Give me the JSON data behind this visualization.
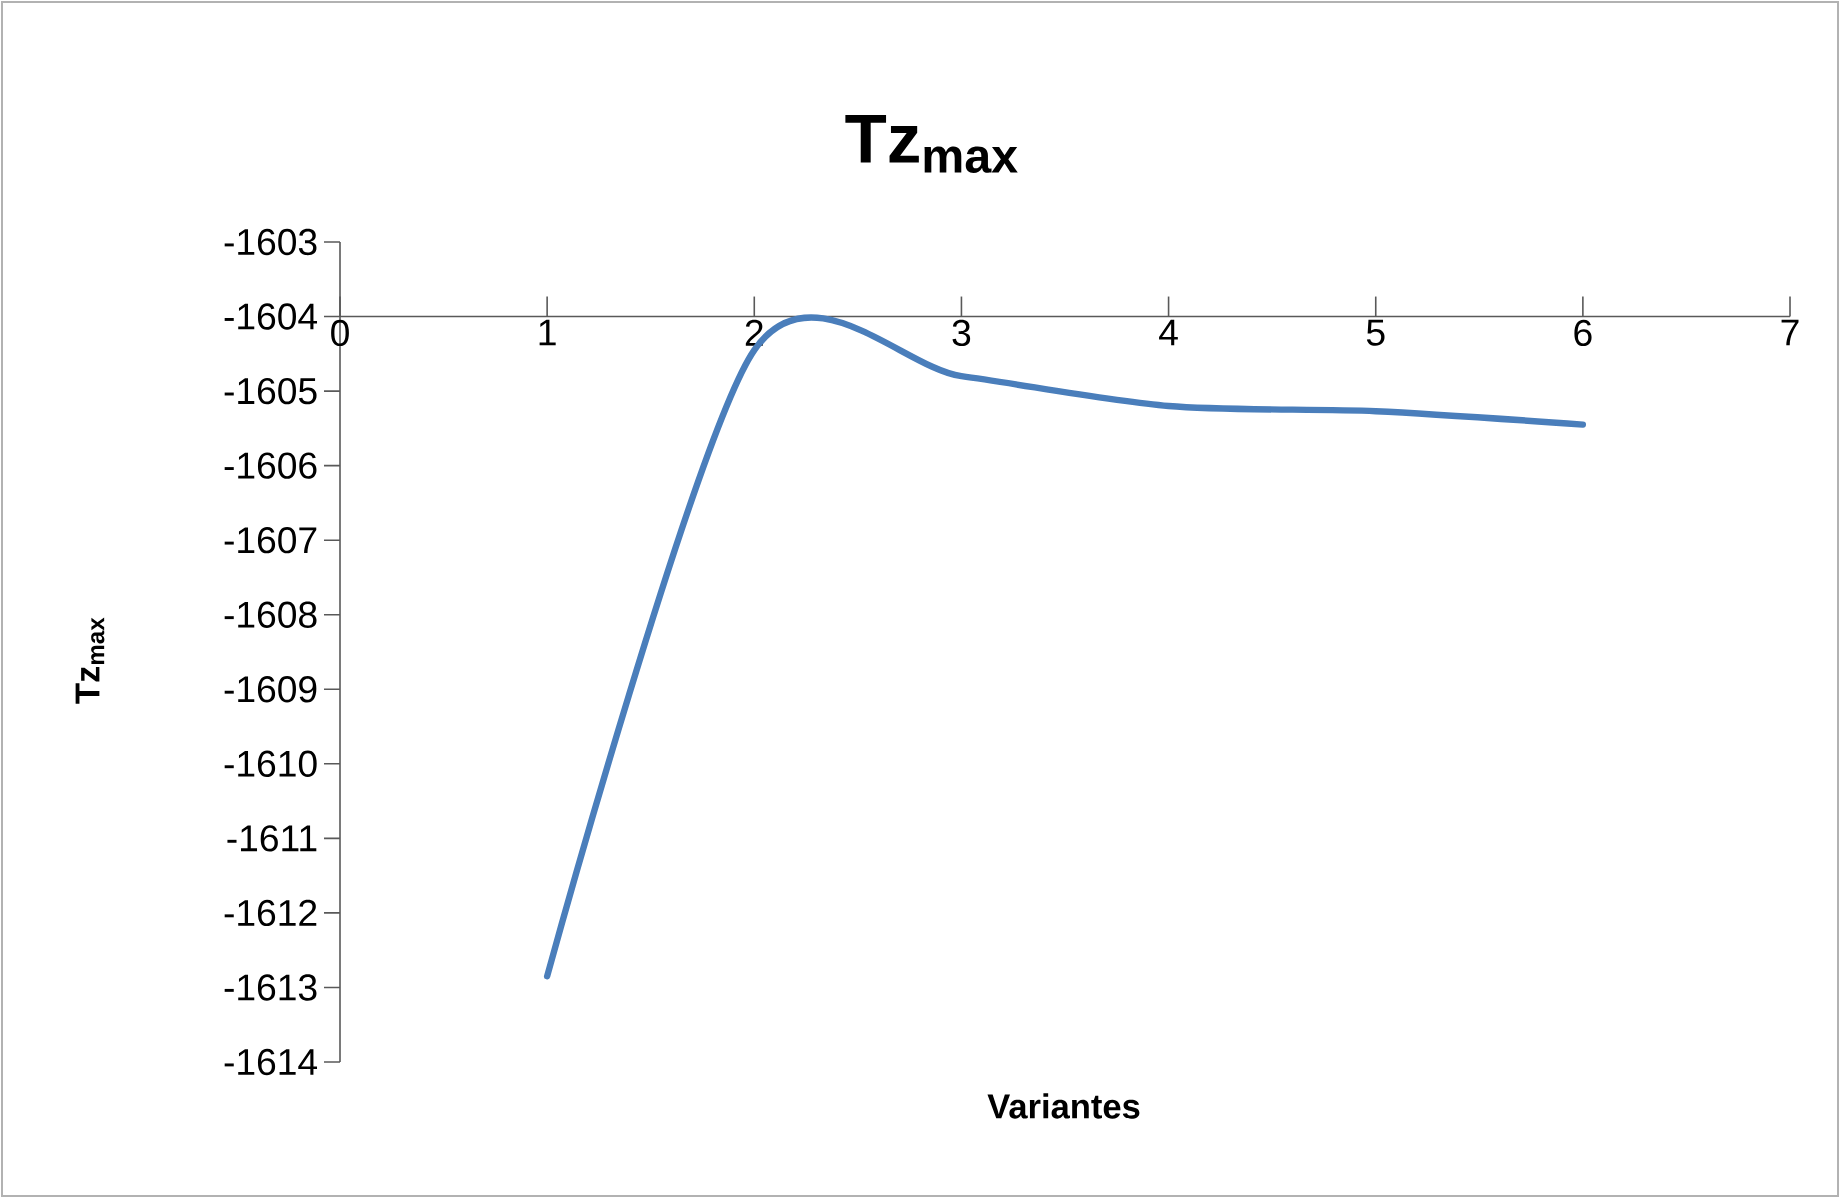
{
  "chart_data": {
    "type": "line",
    "title": "Tz$_{max}$",
    "xlabel": "Variantes",
    "ylabel": "Tz$_{max}$",
    "x": [
      1,
      2,
      3,
      4,
      5,
      6
    ],
    "series": [
      {
        "color": "#4a7ebb",
        "values": [
          -1612.85,
          -1604.45,
          -1604.8,
          -1605.2,
          -1605.27,
          -1605.45
        ]
      }
    ],
    "xlim": [
      0,
      7
    ],
    "xticks": [
      0,
      1,
      2,
      3,
      4,
      5,
      6,
      7
    ],
    "ylim": [
      -1614,
      -1603
    ],
    "yticks": [
      -1614,
      -1613,
      -1612,
      -1611,
      -1610,
      -1609,
      -1608,
      -1607,
      -1606,
      -1605,
      -1604,
      -1603
    ]
  }
}
